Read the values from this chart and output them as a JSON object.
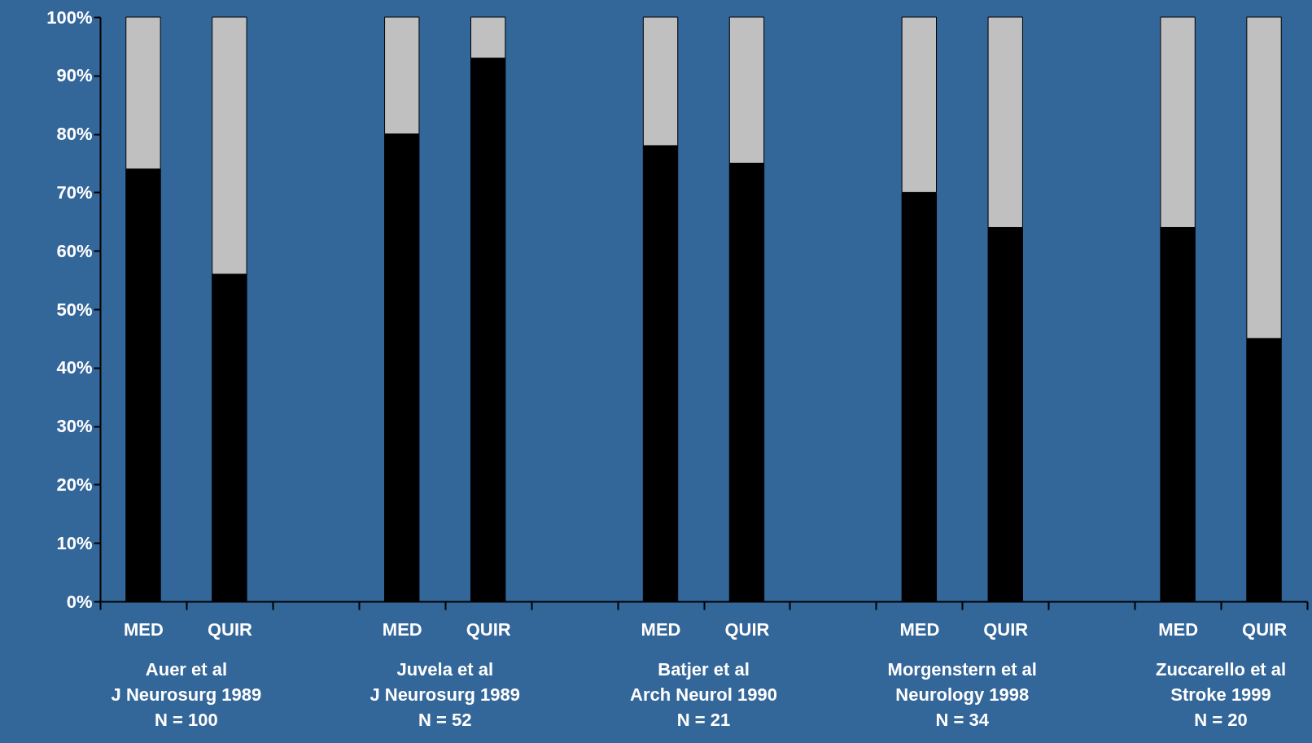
{
  "chart_data": {
    "type": "bar",
    "stacked": true,
    "categories": [
      "MED",
      "QUIR",
      null,
      "MED",
      "QUIR",
      null,
      "MED",
      "QUIR",
      null,
      "MED",
      "QUIR",
      null,
      "MED",
      "QUIR"
    ],
    "series": [
      {
        "color": "#000000",
        "values": [
          74,
          56,
          null,
          80,
          93,
          null,
          78,
          75,
          null,
          70,
          64,
          null,
          64,
          45
        ]
      },
      {
        "color": "#c0c0c0",
        "values": [
          26,
          44,
          null,
          20,
          7,
          null,
          22,
          25,
          null,
          30,
          36,
          null,
          36,
          55
        ]
      }
    ],
    "ylim": [
      0,
      100
    ],
    "yticks": [
      {
        "value": 0,
        "label": "0%"
      },
      {
        "value": 10,
        "label": "10%"
      },
      {
        "value": 20,
        "label": "20%"
      },
      {
        "value": 30,
        "label": "30%"
      },
      {
        "value": 40,
        "label": "40%"
      },
      {
        "value": 50,
        "label": "50%"
      },
      {
        "value": 60,
        "label": "60%"
      },
      {
        "value": 70,
        "label": "70%"
      },
      {
        "value": 80,
        "label": "80%"
      },
      {
        "value": 90,
        "label": "90%"
      },
      {
        "value": 100,
        "label": "100%"
      }
    ],
    "annotations": [
      "Auer et al\nJ Neurosurg 1989\nN = 100",
      "Juvela et al\nJ Neurosurg 1989\nN = 52",
      "Batjer et al\nArch Neurol 1990\nN = 21",
      "Morgenstern et al\nNeurology 1998\nN = 34",
      "Zuccarello et al\nStroke 1999\nN = 20"
    ],
    "grid": false
  }
}
